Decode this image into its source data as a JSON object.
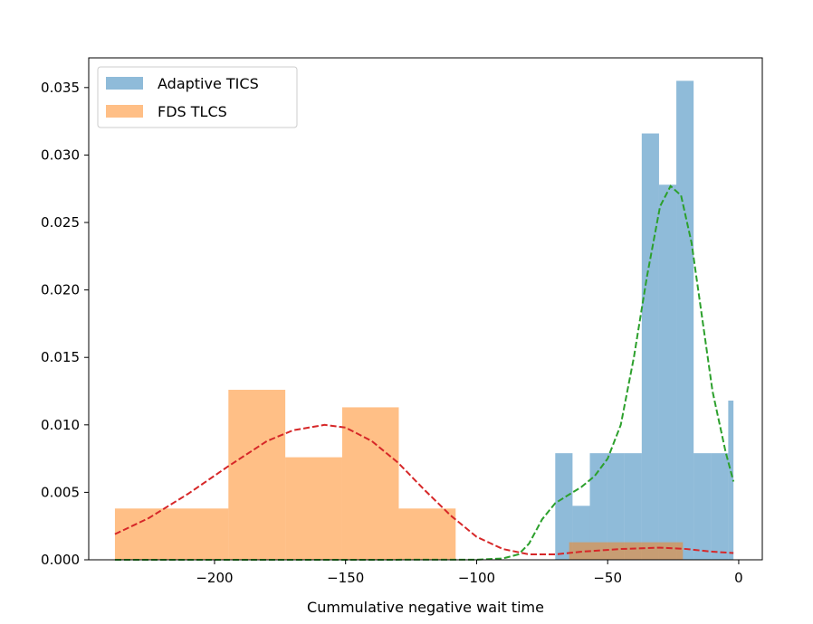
{
  "chart_data": {
    "type": "histogram",
    "title": "",
    "xlabel": "Cummulative negative wait time",
    "ylabel": "",
    "xlim": [
      -248,
      9
    ],
    "ylim": [
      0,
      0.0372
    ],
    "x_ticks": [
      -200,
      -150,
      -100,
      -50,
      0
    ],
    "x_tick_labels": [
      "−200",
      "−150",
      "−100",
      "−50",
      "0"
    ],
    "y_ticks": [
      0.0,
      0.005,
      0.01,
      0.015,
      0.02,
      0.025,
      0.03,
      0.035
    ],
    "y_tick_labels": [
      "0.000",
      "0.005",
      "0.010",
      "0.015",
      "0.020",
      "0.025",
      "0.030",
      "0.035"
    ],
    "grid": false,
    "legend_position": "top-left",
    "series": [
      {
        "name": "Adaptive TICS",
        "color": "#1f77b4",
        "opacity": 0.5,
        "bins": [
          [
            -70,
            -63.4,
            0.0079
          ],
          [
            -63.4,
            -56.8,
            0.004
          ],
          [
            -56.8,
            -50.2,
            0.0079
          ],
          [
            -50.2,
            -43.6,
            0.0079
          ],
          [
            -43.6,
            -37.0,
            0.0079
          ],
          [
            -37.0,
            -30.4,
            0.0316
          ],
          [
            -30.4,
            -23.8,
            0.0278
          ],
          [
            -23.8,
            -17.2,
            0.0355
          ],
          [
            -17.2,
            -10.6,
            0.0079
          ],
          [
            -10.6,
            -4.0,
            0.0079
          ],
          [
            -4.0,
            -2.0,
            0.0118
          ]
        ]
      },
      {
        "name": "FDS TLCS",
        "color": "#ff7f0e",
        "opacity": 0.5,
        "bins": [
          [
            -238,
            -194.7,
            0.0038
          ],
          [
            -194.7,
            -173,
            0.0126
          ],
          [
            -173,
            -151.3,
            0.0076
          ],
          [
            -151.3,
            -129.7,
            0.0113
          ],
          [
            -129.7,
            -108,
            0.0038
          ],
          [
            -108,
            -86.3,
            0.0
          ],
          [
            -86.3,
            -64.7,
            0.0
          ],
          [
            -64.7,
            -43,
            0.0013
          ],
          [
            -43,
            -21.3,
            0.0013
          ]
        ]
      }
    ],
    "density_curves": [
      {
        "color": "#2ca02c",
        "dash": true,
        "points": [
          [
            -238,
            0.0
          ],
          [
            -150,
            0.0
          ],
          [
            -100,
            1e-05
          ],
          [
            -90,
            0.0001
          ],
          [
            -84,
            0.0004
          ],
          [
            -80,
            0.0012
          ],
          [
            -75,
            0.003
          ],
          [
            -70,
            0.0042
          ],
          [
            -65,
            0.0048
          ],
          [
            -60,
            0.0054
          ],
          [
            -55,
            0.0062
          ],
          [
            -50,
            0.0075
          ],
          [
            -45,
            0.01
          ],
          [
            -40,
            0.015
          ],
          [
            -35,
            0.021
          ],
          [
            -30,
            0.0262
          ],
          [
            -26,
            0.0277
          ],
          [
            -22,
            0.027
          ],
          [
            -18,
            0.0235
          ],
          [
            -14,
            0.018
          ],
          [
            -10,
            0.0125
          ],
          [
            -5,
            0.008
          ],
          [
            -2,
            0.0058
          ]
        ]
      },
      {
        "color": "#d62728",
        "dash": true,
        "points": [
          [
            -238,
            0.0019
          ],
          [
            -225,
            0.0031
          ],
          [
            -210,
            0.0049
          ],
          [
            -195,
            0.0069
          ],
          [
            -180,
            0.0088
          ],
          [
            -170,
            0.0096
          ],
          [
            -158,
            0.01
          ],
          [
            -150,
            0.0098
          ],
          [
            -140,
            0.0088
          ],
          [
            -130,
            0.0072
          ],
          [
            -120,
            0.0052
          ],
          [
            -110,
            0.0033
          ],
          [
            -100,
            0.0017
          ],
          [
            -90,
            0.0008
          ],
          [
            -80,
            0.0004
          ],
          [
            -70,
            0.0004
          ],
          [
            -60,
            0.0006
          ],
          [
            -45,
            0.0008
          ],
          [
            -30,
            0.0009
          ],
          [
            -20,
            0.0008
          ],
          [
            -10,
            0.0006
          ],
          [
            -2,
            0.0005
          ]
        ]
      }
    ]
  }
}
